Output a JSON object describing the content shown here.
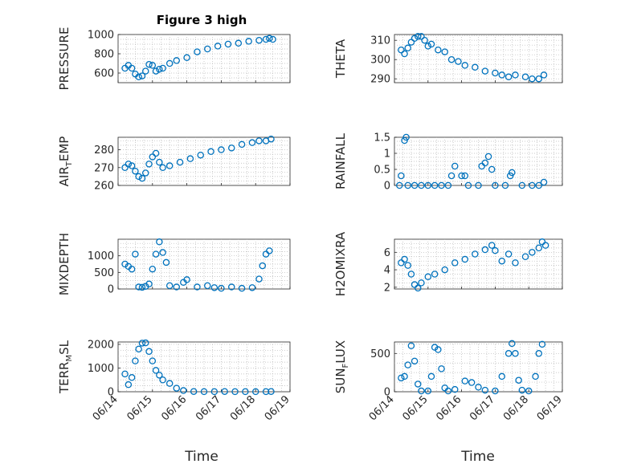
{
  "chart_data": [
    {
      "type": "scatter",
      "title": "Figure 3 high",
      "ylabel": "PRESSURE",
      "ylim": [
        500,
        1000
      ],
      "yticks": [
        600,
        800,
        1000
      ],
      "xlim": [
        0,
        5
      ],
      "xticklabels": [
        "06/14",
        "06/15",
        "06/16",
        "06/17",
        "06/18",
        "06/19"
      ],
      "xlabel": "",
      "points": [
        [
          0.2,
          650
        ],
        [
          0.3,
          680
        ],
        [
          0.4,
          650
        ],
        [
          0.5,
          590
        ],
        [
          0.6,
          560
        ],
        [
          0.7,
          570
        ],
        [
          0.8,
          620
        ],
        [
          0.9,
          690
        ],
        [
          1.0,
          680
        ],
        [
          1.1,
          620
        ],
        [
          1.2,
          640
        ],
        [
          1.3,
          650
        ],
        [
          1.5,
          700
        ],
        [
          1.7,
          730
        ],
        [
          2.0,
          760
        ],
        [
          2.3,
          820
        ],
        [
          2.6,
          850
        ],
        [
          2.9,
          880
        ],
        [
          3.2,
          900
        ],
        [
          3.5,
          910
        ],
        [
          3.8,
          930
        ],
        [
          4.1,
          940
        ],
        [
          4.3,
          950
        ],
        [
          4.4,
          960
        ],
        [
          4.5,
          950
        ]
      ]
    },
    {
      "type": "scatter",
      "title": "",
      "ylabel": "THETA",
      "ylim": [
        288,
        313
      ],
      "yticks": [
        290,
        300,
        310
      ],
      "xlim": [
        0,
        5
      ],
      "xticklabels": [
        "06/14",
        "06/15",
        "06/16",
        "06/17",
        "06/18",
        "06/19"
      ],
      "xlabel": "",
      "points": [
        [
          0.2,
          305
        ],
        [
          0.3,
          303
        ],
        [
          0.4,
          306
        ],
        [
          0.5,
          309
        ],
        [
          0.6,
          311
        ],
        [
          0.7,
          312
        ],
        [
          0.8,
          312
        ],
        [
          0.9,
          310
        ],
        [
          1.0,
          307
        ],
        [
          1.1,
          308
        ],
        [
          1.3,
          305
        ],
        [
          1.5,
          304
        ],
        [
          1.7,
          300
        ],
        [
          1.9,
          299
        ],
        [
          2.1,
          297
        ],
        [
          2.4,
          296
        ],
        [
          2.7,
          294
        ],
        [
          3.0,
          293
        ],
        [
          3.2,
          292
        ],
        [
          3.4,
          291
        ],
        [
          3.6,
          292
        ],
        [
          3.9,
          291
        ],
        [
          4.1,
          290
        ],
        [
          4.3,
          290
        ],
        [
          4.45,
          292
        ]
      ]
    },
    {
      "type": "scatter",
      "title": "",
      "ylabel": "AIR_TEMP",
      "ylim": [
        260,
        287
      ],
      "yticks": [
        260,
        270,
        280
      ],
      "xlim": [
        0,
        5
      ],
      "xticklabels": [
        "06/14",
        "06/15",
        "06/16",
        "06/17",
        "06/18",
        "06/19"
      ],
      "xlabel": "",
      "points": [
        [
          0.2,
          270
        ],
        [
          0.3,
          272
        ],
        [
          0.4,
          271
        ],
        [
          0.5,
          268
        ],
        [
          0.6,
          265
        ],
        [
          0.7,
          264
        ],
        [
          0.8,
          267
        ],
        [
          0.9,
          272
        ],
        [
          1.0,
          276
        ],
        [
          1.1,
          278
        ],
        [
          1.2,
          273
        ],
        [
          1.3,
          270
        ],
        [
          1.5,
          271
        ],
        [
          1.8,
          273
        ],
        [
          2.1,
          275
        ],
        [
          2.4,
          277
        ],
        [
          2.7,
          279
        ],
        [
          3.0,
          280
        ],
        [
          3.3,
          281
        ],
        [
          3.6,
          283
        ],
        [
          3.9,
          284
        ],
        [
          4.1,
          285
        ],
        [
          4.3,
          285
        ],
        [
          4.45,
          286
        ]
      ]
    },
    {
      "type": "scatter",
      "title": "",
      "ylabel": "RAINFALL",
      "ylim": [
        0,
        1.5
      ],
      "yticks": [
        0,
        0.5,
        1,
        1.5
      ],
      "xlim": [
        0,
        5
      ],
      "xticklabels": [
        "06/14",
        "06/15",
        "06/16",
        "06/17",
        "06/18",
        "06/19"
      ],
      "xlabel": "",
      "points": [
        [
          0.15,
          0
        ],
        [
          0.2,
          0.3
        ],
        [
          0.3,
          1.4
        ],
        [
          0.35,
          1.5
        ],
        [
          0.4,
          0
        ],
        [
          0.6,
          0
        ],
        [
          0.8,
          0
        ],
        [
          1.0,
          0
        ],
        [
          1.2,
          0
        ],
        [
          1.4,
          0
        ],
        [
          1.6,
          0
        ],
        [
          1.7,
          0.3
        ],
        [
          1.8,
          0.6
        ],
        [
          2.0,
          0.3
        ],
        [
          2.1,
          0.3
        ],
        [
          2.2,
          0
        ],
        [
          2.5,
          0
        ],
        [
          2.6,
          0.6
        ],
        [
          2.7,
          0.7
        ],
        [
          2.8,
          0.9
        ],
        [
          2.9,
          0.5
        ],
        [
          3.0,
          0
        ],
        [
          3.3,
          0
        ],
        [
          3.45,
          0.3
        ],
        [
          3.5,
          0.4
        ],
        [
          3.8,
          0
        ],
        [
          4.1,
          0
        ],
        [
          4.3,
          0
        ],
        [
          4.45,
          0.1
        ]
      ]
    },
    {
      "type": "scatter",
      "title": "",
      "ylabel": "MIXDEPTH",
      "ylim": [
        0,
        1500
      ],
      "yticks": [
        0,
        500,
        1000
      ],
      "xlim": [
        0,
        5
      ],
      "xticklabels": [
        "06/14",
        "06/15",
        "06/16",
        "06/17",
        "06/18",
        "06/19"
      ],
      "xlabel": "",
      "points": [
        [
          0.2,
          750
        ],
        [
          0.3,
          680
        ],
        [
          0.4,
          600
        ],
        [
          0.5,
          1050
        ],
        [
          0.6,
          60
        ],
        [
          0.7,
          50
        ],
        [
          0.8,
          80
        ],
        [
          0.9,
          150
        ],
        [
          1.0,
          600
        ],
        [
          1.1,
          1050
        ],
        [
          1.2,
          1420
        ],
        [
          1.3,
          1100
        ],
        [
          1.4,
          800
        ],
        [
          1.5,
          100
        ],
        [
          1.7,
          60
        ],
        [
          1.9,
          200
        ],
        [
          2.0,
          280
        ],
        [
          2.3,
          60
        ],
        [
          2.6,
          100
        ],
        [
          2.8,
          40
        ],
        [
          3.0,
          20
        ],
        [
          3.3,
          60
        ],
        [
          3.6,
          20
        ],
        [
          3.9,
          40
        ],
        [
          4.1,
          300
        ],
        [
          4.2,
          700
        ],
        [
          4.3,
          1050
        ],
        [
          4.4,
          1150
        ]
      ]
    },
    {
      "type": "scatter",
      "title": "",
      "ylabel": "H2OMIXRA",
      "ylim": [
        1.8,
        7.5
      ],
      "yticks": [
        2,
        4,
        6
      ],
      "xlim": [
        0,
        5
      ],
      "xticklabels": [
        "06/14",
        "06/15",
        "06/16",
        "06/17",
        "06/18",
        "06/19"
      ],
      "xlabel": "",
      "points": [
        [
          0.2,
          4.8
        ],
        [
          0.3,
          5.2
        ],
        [
          0.4,
          4.5
        ],
        [
          0.5,
          3.5
        ],
        [
          0.6,
          2.3
        ],
        [
          0.7,
          1.9
        ],
        [
          0.8,
          2.5
        ],
        [
          1.0,
          3.2
        ],
        [
          1.2,
          3.5
        ],
        [
          1.5,
          4.0
        ],
        [
          1.8,
          4.8
        ],
        [
          2.1,
          5.2
        ],
        [
          2.4,
          5.8
        ],
        [
          2.7,
          6.3
        ],
        [
          2.9,
          6.8
        ],
        [
          3.0,
          6.2
        ],
        [
          3.2,
          5.0
        ],
        [
          3.4,
          5.8
        ],
        [
          3.6,
          4.8
        ],
        [
          3.9,
          5.5
        ],
        [
          4.1,
          6.0
        ],
        [
          4.3,
          6.5
        ],
        [
          4.4,
          7.2
        ],
        [
          4.5,
          6.8
        ]
      ]
    },
    {
      "type": "scatter",
      "title": "",
      "ylabel": "TERR_MSL",
      "ylim": [
        0,
        2100
      ],
      "yticks": [
        0,
        1000,
        2000
      ],
      "xlim": [
        0,
        5
      ],
      "xticklabels": [
        "06/14",
        "06/15",
        "06/16",
        "06/17",
        "06/18",
        "06/19"
      ],
      "xlabel": "Time",
      "points": [
        [
          0.2,
          750
        ],
        [
          0.3,
          300
        ],
        [
          0.4,
          600
        ],
        [
          0.5,
          1300
        ],
        [
          0.6,
          1800
        ],
        [
          0.7,
          2050
        ],
        [
          0.8,
          2060
        ],
        [
          0.9,
          1700
        ],
        [
          1.0,
          1300
        ],
        [
          1.1,
          900
        ],
        [
          1.2,
          700
        ],
        [
          1.3,
          500
        ],
        [
          1.5,
          350
        ],
        [
          1.7,
          150
        ],
        [
          1.9,
          50
        ],
        [
          2.2,
          10
        ],
        [
          2.5,
          5
        ],
        [
          2.8,
          5
        ],
        [
          3.1,
          10
        ],
        [
          3.4,
          5
        ],
        [
          3.7,
          5
        ],
        [
          4.0,
          5
        ],
        [
          4.3,
          5
        ],
        [
          4.45,
          10
        ]
      ]
    },
    {
      "type": "scatter",
      "title": "",
      "ylabel": "SUN_FLUX",
      "ylim": [
        0,
        650
      ],
      "yticks": [
        0,
        500
      ],
      "xlim": [
        0,
        5
      ],
      "xticklabels": [
        "06/14",
        "06/15",
        "06/16",
        "06/17",
        "06/18",
        "06/19"
      ],
      "xlabel": "Time",
      "points": [
        [
          0.2,
          180
        ],
        [
          0.3,
          200
        ],
        [
          0.4,
          350
        ],
        [
          0.5,
          600
        ],
        [
          0.6,
          400
        ],
        [
          0.7,
          100
        ],
        [
          0.8,
          10
        ],
        [
          1.0,
          10
        ],
        [
          1.1,
          200
        ],
        [
          1.2,
          580
        ],
        [
          1.3,
          550
        ],
        [
          1.4,
          300
        ],
        [
          1.5,
          50
        ],
        [
          1.6,
          10
        ],
        [
          1.8,
          30
        ],
        [
          2.1,
          140
        ],
        [
          2.3,
          120
        ],
        [
          2.5,
          60
        ],
        [
          2.7,
          20
        ],
        [
          3.0,
          10
        ],
        [
          3.2,
          200
        ],
        [
          3.4,
          500
        ],
        [
          3.5,
          630
        ],
        [
          3.6,
          500
        ],
        [
          3.7,
          150
        ],
        [
          3.8,
          20
        ],
        [
          4.0,
          10
        ],
        [
          4.2,
          200
        ],
        [
          4.3,
          500
        ],
        [
          4.4,
          620
        ]
      ]
    }
  ],
  "figure_title": "Figure 3 high",
  "xlabel": "Time"
}
